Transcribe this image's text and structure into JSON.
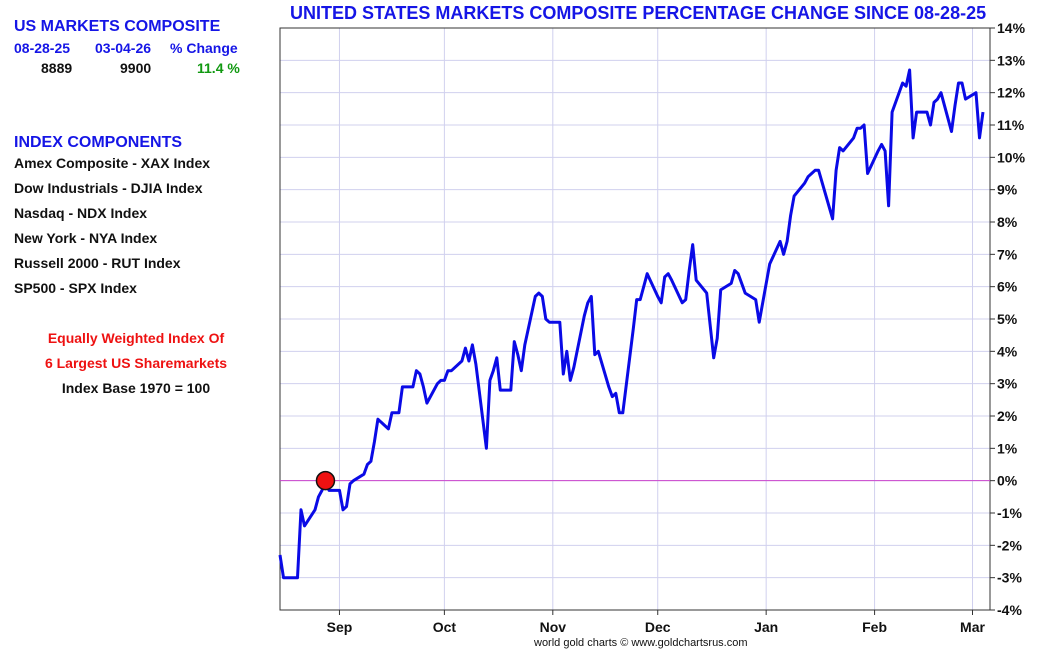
{
  "summary": {
    "title": "US MARKETS COMPOSITE",
    "headers": [
      "08-28-25",
      "03-04-26",
      "% Change"
    ],
    "values": [
      "8889",
      "9900",
      "11.4 %"
    ]
  },
  "components": {
    "heading": "INDEX COMPONENTS",
    "items": [
      "Amex Composite - XAX Index",
      "Dow Industrials - DJIA Index",
      "Nasdaq - NDX Index",
      "New York - NYA Index",
      "Russell 2000 - RUT Index",
      "SP500 - SPX Index"
    ]
  },
  "notes": {
    "line1": "Equally Weighted Index Of",
    "line2": "6 Largest US Sharemarkets",
    "line3": "Index Base 1970 = 100"
  },
  "footer": "world gold charts © www.goldchartsrus.com",
  "colors": {
    "line": "#0a0ae6",
    "title": "#1515e6",
    "positive": "#119911",
    "marker": "#ee1111",
    "zero_line": "#cc44cc",
    "grid": "#d0d0ee"
  },
  "chart_data": {
    "type": "line",
    "title": "UNITED STATES MARKETS COMPOSITE PERCENTAGE CHANGE SINCE 08-28-25",
    "xlabel": "",
    "ylabel": "",
    "ylim": [
      -4,
      14
    ],
    "y_ticks": [
      -4,
      -3,
      -2,
      -1,
      0,
      1,
      2,
      3,
      4,
      5,
      6,
      7,
      8,
      9,
      10,
      11,
      12,
      13,
      14
    ],
    "y_tick_suffix": "%",
    "x_range": [
      "2025-08-15",
      "2026-03-06"
    ],
    "x_tick_labels": [
      {
        "date": "2025-09-01",
        "label": "Sep"
      },
      {
        "date": "2025-10-01",
        "label": "Oct"
      },
      {
        "date": "2025-11-01",
        "label": "Nov"
      },
      {
        "date": "2025-12-01",
        "label": "Dec"
      },
      {
        "date": "2026-01-01",
        "label": "Jan"
      },
      {
        "date": "2026-02-01",
        "label": "Feb"
      },
      {
        "date": "2026-03-01",
        "label": "Mar"
      }
    ],
    "grid": true,
    "y_axis_side": "right",
    "marker": {
      "date": "2025-08-28",
      "value": 0
    },
    "series": [
      {
        "points": [
          [
            "2025-08-15",
            -2.3
          ],
          [
            "2025-08-16",
            -3.0
          ],
          [
            "2025-08-20",
            -3.0
          ],
          [
            "2025-08-21",
            -0.9
          ],
          [
            "2025-08-22",
            -1.4
          ],
          [
            "2025-08-25",
            -0.9
          ],
          [
            "2025-08-26",
            -0.5
          ],
          [
            "2025-08-27",
            -0.3
          ],
          [
            "2025-08-28",
            0.0
          ],
          [
            "2025-08-29",
            -0.3
          ],
          [
            "2025-09-01",
            -0.3
          ],
          [
            "2025-09-02",
            -0.9
          ],
          [
            "2025-09-03",
            -0.8
          ],
          [
            "2025-09-04",
            -0.1
          ],
          [
            "2025-09-05",
            0.0
          ],
          [
            "2025-09-08",
            0.2
          ],
          [
            "2025-09-09",
            0.5
          ],
          [
            "2025-09-10",
            0.6
          ],
          [
            "2025-09-11",
            1.2
          ],
          [
            "2025-09-12",
            1.9
          ],
          [
            "2025-09-15",
            1.6
          ],
          [
            "2025-09-16",
            2.1
          ],
          [
            "2025-09-17",
            2.1
          ],
          [
            "2025-09-18",
            2.1
          ],
          [
            "2025-09-19",
            2.9
          ],
          [
            "2025-09-22",
            2.9
          ],
          [
            "2025-09-23",
            3.4
          ],
          [
            "2025-09-24",
            3.3
          ],
          [
            "2025-09-25",
            2.9
          ],
          [
            "2025-09-26",
            2.4
          ],
          [
            "2025-09-29",
            3.0
          ],
          [
            "2025-09-30",
            3.1
          ],
          [
            "2025-10-01",
            3.1
          ],
          [
            "2025-10-02",
            3.4
          ],
          [
            "2025-10-03",
            3.4
          ],
          [
            "2025-10-06",
            3.7
          ],
          [
            "2025-10-07",
            4.1
          ],
          [
            "2025-10-08",
            3.7
          ],
          [
            "2025-10-09",
            4.2
          ],
          [
            "2025-10-10",
            3.6
          ],
          [
            "2025-10-13",
            1.0
          ],
          [
            "2025-10-14",
            3.1
          ],
          [
            "2025-10-15",
            3.4
          ],
          [
            "2025-10-16",
            3.8
          ],
          [
            "2025-10-17",
            2.8
          ],
          [
            "2025-10-20",
            2.8
          ],
          [
            "2025-10-21",
            4.3
          ],
          [
            "2025-10-22",
            3.9
          ],
          [
            "2025-10-23",
            3.4
          ],
          [
            "2025-10-24",
            4.2
          ],
          [
            "2025-10-27",
            5.7
          ],
          [
            "2025-10-28",
            5.8
          ],
          [
            "2025-10-29",
            5.7
          ],
          [
            "2025-10-30",
            5.0
          ],
          [
            "2025-10-31",
            4.9
          ],
          [
            "2025-11-03",
            4.9
          ],
          [
            "2025-11-04",
            3.3
          ],
          [
            "2025-11-05",
            4.0
          ],
          [
            "2025-11-06",
            3.1
          ],
          [
            "2025-11-07",
            3.5
          ],
          [
            "2025-11-10",
            5.1
          ],
          [
            "2025-11-11",
            5.5
          ],
          [
            "2025-11-12",
            5.7
          ],
          [
            "2025-11-13",
            3.9
          ],
          [
            "2025-11-14",
            4.0
          ],
          [
            "2025-11-17",
            2.9
          ],
          [
            "2025-11-18",
            2.6
          ],
          [
            "2025-11-19",
            2.7
          ],
          [
            "2025-11-20",
            2.1
          ],
          [
            "2025-11-21",
            2.1
          ],
          [
            "2025-11-24",
            4.7
          ],
          [
            "2025-11-25",
            5.6
          ],
          [
            "2025-11-26",
            5.6
          ],
          [
            "2025-11-28",
            6.4
          ],
          [
            "2025-12-01",
            5.7
          ],
          [
            "2025-12-02",
            5.5
          ],
          [
            "2025-12-03",
            6.3
          ],
          [
            "2025-12-04",
            6.4
          ],
          [
            "2025-12-05",
            6.2
          ],
          [
            "2025-12-08",
            5.5
          ],
          [
            "2025-12-09",
            5.6
          ],
          [
            "2025-12-10",
            6.5
          ],
          [
            "2025-12-11",
            7.3
          ],
          [
            "2025-12-12",
            6.2
          ],
          [
            "2025-12-15",
            5.8
          ],
          [
            "2025-12-16",
            4.8
          ],
          [
            "2025-12-17",
            3.8
          ],
          [
            "2025-12-18",
            4.4
          ],
          [
            "2025-12-19",
            5.9
          ],
          [
            "2025-12-22",
            6.1
          ],
          [
            "2025-12-23",
            6.5
          ],
          [
            "2025-12-24",
            6.4
          ],
          [
            "2025-12-26",
            5.8
          ],
          [
            "2025-12-29",
            5.6
          ],
          [
            "2025-12-30",
            4.9
          ],
          [
            "2026-01-02",
            6.7
          ],
          [
            "2026-01-05",
            7.4
          ],
          [
            "2026-01-06",
            7.0
          ],
          [
            "2026-01-07",
            7.4
          ],
          [
            "2026-01-08",
            8.2
          ],
          [
            "2026-01-09",
            8.8
          ],
          [
            "2026-01-12",
            9.2
          ],
          [
            "2026-01-13",
            9.4
          ],
          [
            "2026-01-14",
            9.5
          ],
          [
            "2026-01-15",
            9.6
          ],
          [
            "2026-01-16",
            9.6
          ],
          [
            "2026-01-20",
            8.1
          ],
          [
            "2026-01-21",
            9.6
          ],
          [
            "2026-01-22",
            10.3
          ],
          [
            "2026-01-23",
            10.2
          ],
          [
            "2026-01-26",
            10.6
          ],
          [
            "2026-01-27",
            10.9
          ],
          [
            "2026-01-28",
            10.9
          ],
          [
            "2026-01-29",
            11.0
          ],
          [
            "2026-01-30",
            9.5
          ],
          [
            "2026-02-02",
            10.2
          ],
          [
            "2026-02-03",
            10.4
          ],
          [
            "2026-02-04",
            10.2
          ],
          [
            "2026-02-05",
            8.5
          ],
          [
            "2026-02-06",
            11.4
          ],
          [
            "2026-02-09",
            12.3
          ],
          [
            "2026-02-10",
            12.2
          ],
          [
            "2026-02-11",
            12.7
          ],
          [
            "2026-02-12",
            10.6
          ],
          [
            "2026-02-13",
            11.4
          ],
          [
            "2026-02-16",
            11.4
          ],
          [
            "2026-02-17",
            11.0
          ],
          [
            "2026-02-18",
            11.7
          ],
          [
            "2026-02-19",
            11.8
          ],
          [
            "2026-02-20",
            12.0
          ],
          [
            "2026-02-23",
            10.8
          ],
          [
            "2026-02-24",
            11.6
          ],
          [
            "2026-02-25",
            12.3
          ],
          [
            "2026-02-26",
            12.3
          ],
          [
            "2026-02-27",
            11.8
          ],
          [
            "2026-03-02",
            12.0
          ],
          [
            "2026-03-03",
            10.6
          ],
          [
            "2026-03-04",
            11.4
          ]
        ]
      }
    ]
  }
}
